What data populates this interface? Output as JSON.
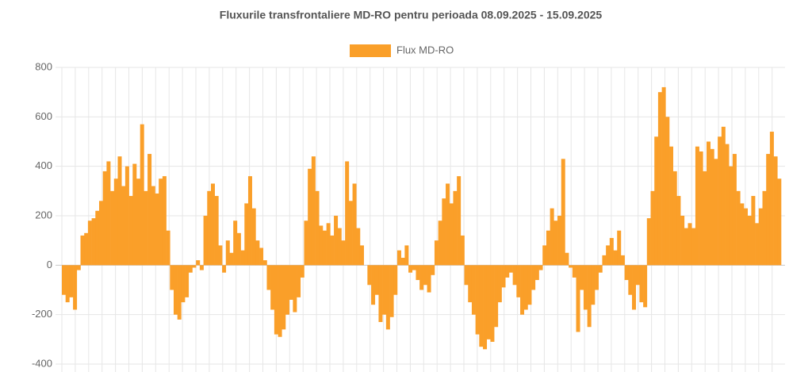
{
  "chart_data": {
    "type": "bar",
    "title": "Fluxurile transfrontaliere MD-RO pentru perioada 08.09.2025 - 15.09.2025",
    "series": [
      {
        "name": "Flux MD-RO",
        "color": "#fa9f29",
        "values": [
          -120,
          -150,
          -130,
          -180,
          -20,
          120,
          130,
          180,
          190,
          220,
          260,
          380,
          420,
          300,
          350,
          440,
          320,
          400,
          280,
          410,
          350,
          570,
          300,
          450,
          320,
          290,
          350,
          360,
          140,
          -100,
          -200,
          -220,
          -150,
          -130,
          -30,
          -10,
          20,
          -20,
          200,
          300,
          330,
          280,
          80,
          -30,
          100,
          50,
          180,
          130,
          60,
          250,
          360,
          230,
          100,
          70,
          20,
          -100,
          -180,
          -280,
          -290,
          -260,
          -200,
          -140,
          -190,
          -130,
          -50,
          180,
          390,
          440,
          300,
          160,
          140,
          170,
          120,
          200,
          150,
          100,
          420,
          260,
          330,
          150,
          80,
          0,
          -80,
          -160,
          -120,
          -230,
          -200,
          -260,
          -210,
          -120,
          60,
          30,
          80,
          -30,
          -20,
          -60,
          -100,
          -80,
          -110,
          -40,
          100,
          180,
          270,
          330,
          250,
          300,
          360,
          120,
          -80,
          -150,
          -200,
          -280,
          -330,
          -340,
          -300,
          -310,
          -250,
          -150,
          -90,
          -50,
          -30,
          -80,
          -130,
          -200,
          -180,
          -160,
          -100,
          -60,
          -20,
          80,
          140,
          230,
          180,
          200,
          430,
          50,
          -10,
          -50,
          -270,
          -100,
          -180,
          -250,
          -160,
          -100,
          -30,
          40,
          80,
          110,
          60,
          140,
          40,
          -60,
          -120,
          -180,
          -80,
          -150,
          -170,
          190,
          300,
          520,
          700,
          720,
          600,
          480,
          380,
          280,
          200,
          150,
          170,
          150,
          480,
          460,
          380,
          500,
          470,
          430,
          520,
          560,
          490,
          400,
          450,
          300,
          250,
          230,
          200,
          280,
          170,
          230,
          300,
          450,
          540,
          440,
          350
        ]
      }
    ],
    "ylim": [
      -400,
      800
    ],
    "yticks": [
      -400,
      -200,
      0,
      200,
      400,
      600,
      800
    ],
    "grid": true
  }
}
